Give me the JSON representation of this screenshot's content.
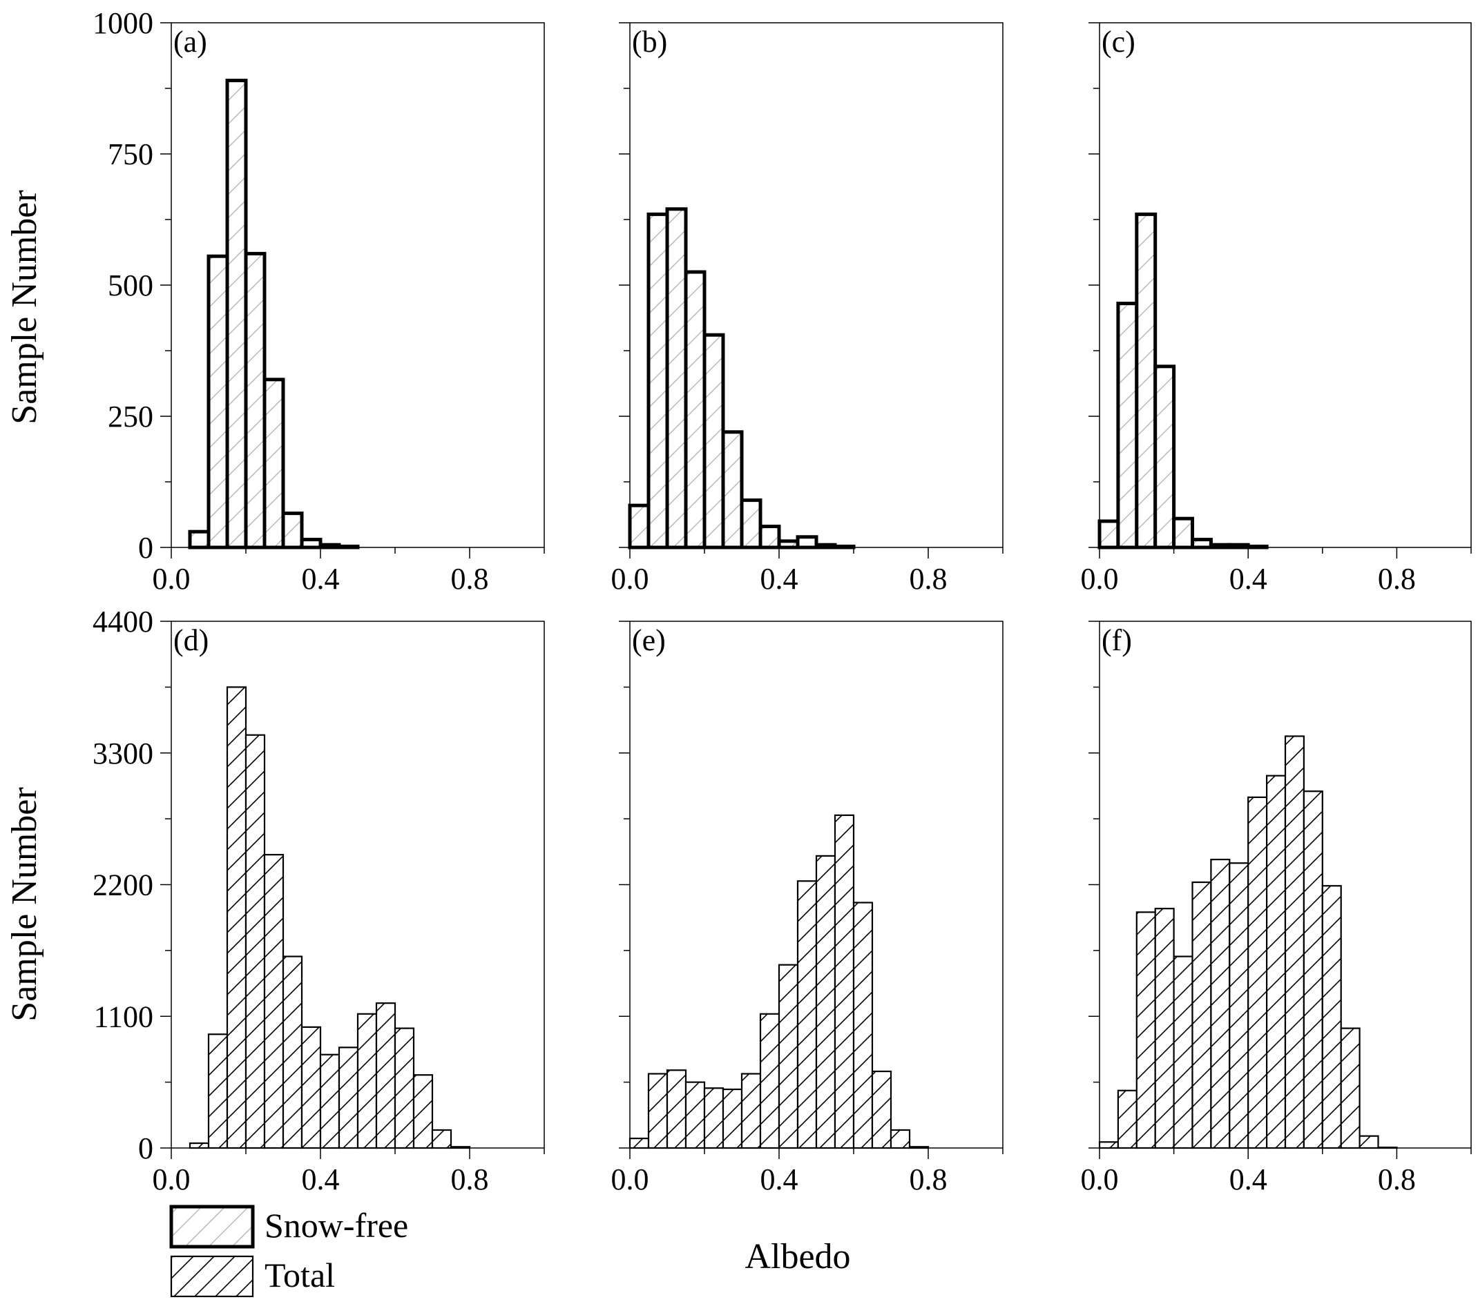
{
  "figure": {
    "y_axis_title": "Sample Number",
    "x_axis_title": "Albedo",
    "legend": [
      {
        "label": "Snow-free",
        "style": "thick-outline-light-hatch"
      },
      {
        "label": "Total",
        "style": "thin-outline-dense-hatch"
      }
    ],
    "colors": {
      "stroke": "#000000",
      "hatch_light": "#b8b8b8",
      "hatch_dense": "#000000",
      "background": "#ffffff"
    }
  },
  "chart_data": [
    {
      "type": "bar",
      "panel": "(a)",
      "series_name": "Snow-free",
      "bin_width": 0.05,
      "bin_starts": [
        0.0,
        0.05,
        0.1,
        0.15,
        0.2,
        0.25,
        0.3,
        0.35,
        0.4,
        0.45
      ],
      "values": [
        0,
        30,
        555,
        890,
        560,
        320,
        65,
        15,
        5,
        2
      ],
      "xlim": [
        0,
        1.0
      ],
      "ylim": [
        0,
        1000
      ],
      "xticks": [
        "0.0",
        "0.4",
        "0.8"
      ],
      "xtick_values": [
        0,
        0.4,
        0.8
      ],
      "yticks": [
        "0",
        "250",
        "500",
        "750",
        "1000"
      ],
      "ytick_values": [
        0,
        250,
        500,
        750,
        1000
      ]
    },
    {
      "type": "bar",
      "panel": "(b)",
      "series_name": "Snow-free",
      "bin_width": 0.05,
      "bin_starts": [
        0.0,
        0.05,
        0.1,
        0.15,
        0.2,
        0.25,
        0.3,
        0.35,
        0.4,
        0.45,
        0.5,
        0.55
      ],
      "values": [
        80,
        635,
        645,
        525,
        405,
        220,
        90,
        40,
        12,
        20,
        5,
        2
      ],
      "xlim": [
        0,
        1.0
      ],
      "ylim": [
        0,
        1000
      ],
      "xticks": [
        "0.0",
        "0.4",
        "0.8"
      ],
      "xtick_values": [
        0,
        0.4,
        0.8
      ],
      "yticks": [],
      "ytick_values": [
        0,
        250,
        500,
        750,
        1000
      ]
    },
    {
      "type": "bar",
      "panel": "(c)",
      "series_name": "Snow-free",
      "bin_width": 0.05,
      "bin_starts": [
        0.0,
        0.05,
        0.1,
        0.15,
        0.2,
        0.25,
        0.3,
        0.35,
        0.4
      ],
      "values": [
        50,
        465,
        635,
        345,
        55,
        15,
        5,
        5,
        2
      ],
      "xlim": [
        0,
        1.0
      ],
      "ylim": [
        0,
        1000
      ],
      "xticks": [
        "0.0",
        "0.4",
        "0.8"
      ],
      "xtick_values": [
        0,
        0.4,
        0.8
      ],
      "yticks": [],
      "ytick_values": [
        0,
        250,
        500,
        750,
        1000
      ]
    },
    {
      "type": "bar",
      "panel": "(d)",
      "series_name": "Total",
      "bin_width": 0.05,
      "bin_starts": [
        0.0,
        0.05,
        0.1,
        0.15,
        0.2,
        0.25,
        0.3,
        0.35,
        0.4,
        0.45,
        0.5,
        0.55,
        0.6,
        0.65,
        0.7,
        0.75
      ],
      "values": [
        0,
        40,
        950,
        3850,
        3450,
        2450,
        1600,
        1010,
        780,
        840,
        1120,
        1210,
        1000,
        610,
        150,
        10
      ],
      "xlim": [
        0,
        1.0
      ],
      "ylim": [
        0,
        4400
      ],
      "xticks": [
        "0.0",
        "0.4",
        "0.8"
      ],
      "xtick_values": [
        0,
        0.4,
        0.8
      ],
      "yticks": [
        "0",
        "1100",
        "2200",
        "3300",
        "4400"
      ],
      "ytick_values": [
        0,
        1100,
        2200,
        3300,
        4400
      ]
    },
    {
      "type": "bar",
      "panel": "(e)",
      "series_name": "Total",
      "bin_width": 0.05,
      "bin_starts": [
        0.0,
        0.05,
        0.1,
        0.15,
        0.2,
        0.25,
        0.3,
        0.35,
        0.4,
        0.45,
        0.5,
        0.55,
        0.6,
        0.65,
        0.7,
        0.75
      ],
      "values": [
        80,
        620,
        650,
        550,
        500,
        490,
        620,
        1120,
        1530,
        2230,
        2440,
        2780,
        2050,
        640,
        150,
        10
      ],
      "xlim": [
        0,
        1.0
      ],
      "ylim": [
        0,
        4400
      ],
      "xticks": [
        "0.0",
        "0.4",
        "0.8"
      ],
      "xtick_values": [
        0,
        0.4,
        0.8
      ],
      "yticks": [],
      "ytick_values": [
        0,
        1100,
        2200,
        3300,
        4400
      ]
    },
    {
      "type": "bar",
      "panel": "(f)",
      "series_name": "Total",
      "bin_width": 0.05,
      "bin_starts": [
        0.0,
        0.05,
        0.1,
        0.15,
        0.2,
        0.25,
        0.3,
        0.35,
        0.4,
        0.45,
        0.5,
        0.55,
        0.6,
        0.65,
        0.7,
        0.75
      ],
      "values": [
        50,
        480,
        1970,
        2000,
        1600,
        2220,
        2410,
        2380,
        2930,
        3110,
        3440,
        2980,
        2190,
        1000,
        100,
        5
      ],
      "xlim": [
        0,
        1.0
      ],
      "ylim": [
        0,
        4400
      ],
      "xticks": [
        "0.0",
        "0.4",
        "0.8"
      ],
      "xtick_values": [
        0,
        0.4,
        0.8
      ],
      "yticks": [],
      "ytick_values": [
        0,
        1100,
        2200,
        3300,
        4400
      ]
    }
  ]
}
